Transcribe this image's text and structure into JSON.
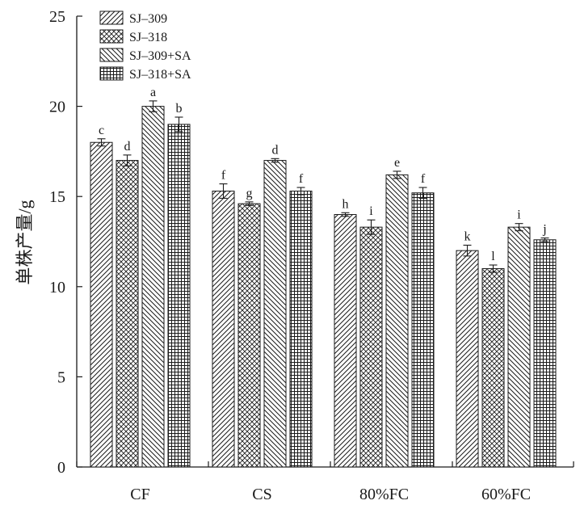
{
  "chart_data": {
    "type": "bar",
    "title": "",
    "xlabel": "",
    "ylabel": "单株产量/g",
    "ylim": [
      0,
      25
    ],
    "yticks": [
      0,
      5,
      10,
      15,
      20,
      25
    ],
    "categories": [
      "CF",
      "CS",
      "80%FC",
      "60%FC"
    ],
    "legend_position": "top-left",
    "series": [
      {
        "name": "SJ–309",
        "pattern": "diag-right",
        "values": [
          18.0,
          15.3,
          14.0,
          12.0
        ],
        "errors": [
          0.2,
          0.4,
          0.1,
          0.3
        ],
        "labels": [
          "c",
          "f",
          "h",
          "k"
        ]
      },
      {
        "name": "SJ–318",
        "pattern": "crosshatch",
        "values": [
          17.0,
          14.6,
          13.3,
          11.0
        ],
        "errors": [
          0.3,
          0.1,
          0.4,
          0.2
        ],
        "labels": [
          "d",
          "g",
          "i",
          "l"
        ]
      },
      {
        "name": "SJ–309+SA",
        "pattern": "diag-left",
        "values": [
          20.0,
          17.0,
          16.2,
          13.3
        ],
        "errors": [
          0.3,
          0.1,
          0.2,
          0.2
        ],
        "labels": [
          "a",
          "d",
          "e",
          "i"
        ]
      },
      {
        "name": "SJ–318+SA",
        "pattern": "grid",
        "values": [
          19.0,
          15.3,
          15.2,
          12.6
        ],
        "errors": [
          0.4,
          0.2,
          0.3,
          0.1
        ],
        "labels": [
          "b",
          "f",
          "f",
          "j"
        ]
      }
    ]
  },
  "colors": {
    "ink": "#1a1a1a",
    "background": "#ffffff"
  }
}
